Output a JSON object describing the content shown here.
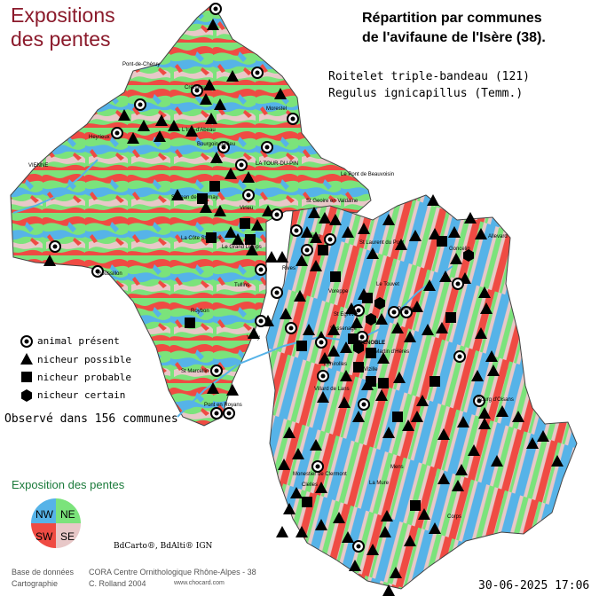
{
  "header": {
    "title_line1": "Expositions",
    "title_line2": "des pentes",
    "repartition_line1": "Répartition par communes",
    "repartition_line2": "de l'avifaune de l'Isère (38)."
  },
  "species": {
    "common_name": "Roitelet triple-bandeau  (121)",
    "latin_name": "Regulus ignicapillus (Temm.)"
  },
  "legend": {
    "items": [
      {
        "symbol": "circle-dot-icon",
        "label": "animal présent"
      },
      {
        "symbol": "triangle-icon",
        "label": "nicheur possible"
      },
      {
        "symbol": "square-icon",
        "label": "nicheur probable"
      },
      {
        "symbol": "hexagon-icon",
        "label": "nicheur certain"
      }
    ]
  },
  "observed": "Observé dans 156 communes",
  "exposition_legend": {
    "title": "Exposition des pentes",
    "quadrants": [
      {
        "label": "NW",
        "color": "#56b3e8"
      },
      {
        "label": "NE",
        "color": "#7be37b"
      },
      {
        "label": "SW",
        "color": "#ef4b43"
      },
      {
        "label": "SE",
        "color": "#e8c8c8"
      }
    ]
  },
  "map_credit": "BdCarto®, BdAlti® IGN",
  "credits": {
    "db_label": "Base de données",
    "db_value": "CORA Centre Ornithologique Rhône-Alpes - 38",
    "carto_label": "Cartographie",
    "carto_value": "C. Rolland 2004",
    "website": "www.chocard.com"
  },
  "date": "30-06-2025 17:06",
  "places": [
    "Pont-de-Chéruy",
    "Crémieu",
    "Morestel",
    "Heyrieux",
    "L'Isle-d'Abeau",
    "Bourgoin-Jallieu",
    "LA TOUR-DU-PIN",
    "Le Pont de Beauvoisin",
    "VIENNE",
    "St Jean de Bournay",
    "Virieu",
    "St Geoire en Valdaine",
    "St Laurent du Pont",
    "Roussillon",
    "La Côte St André",
    "Le Grand Lemps",
    "Rives",
    "Voiron",
    "Roybon",
    "St Marcellin",
    "Vinay",
    "Tullins",
    "GRENOBLE",
    "Vizille",
    "Domène",
    "Goncelin",
    "Allevard",
    "Villard de Lans",
    "Pont en Royans",
    "Monestier de Clermont",
    "Mens",
    "La Mure",
    "Corps",
    "Bourg d'Oisans",
    "Le Touvet",
    "Vif",
    "Voreppe",
    "St Egrève",
    "Echirolles",
    "Sassenage",
    "Clelles",
    "St Martin d'Hères"
  ],
  "colors": {
    "title": "#8b1a2b",
    "north_west": "#56b3e8",
    "north_east": "#7be37b",
    "south_west": "#ef4b43",
    "south_east": "#e8c8c8",
    "flat": "#f2f2f2",
    "symbols": "#000000"
  }
}
